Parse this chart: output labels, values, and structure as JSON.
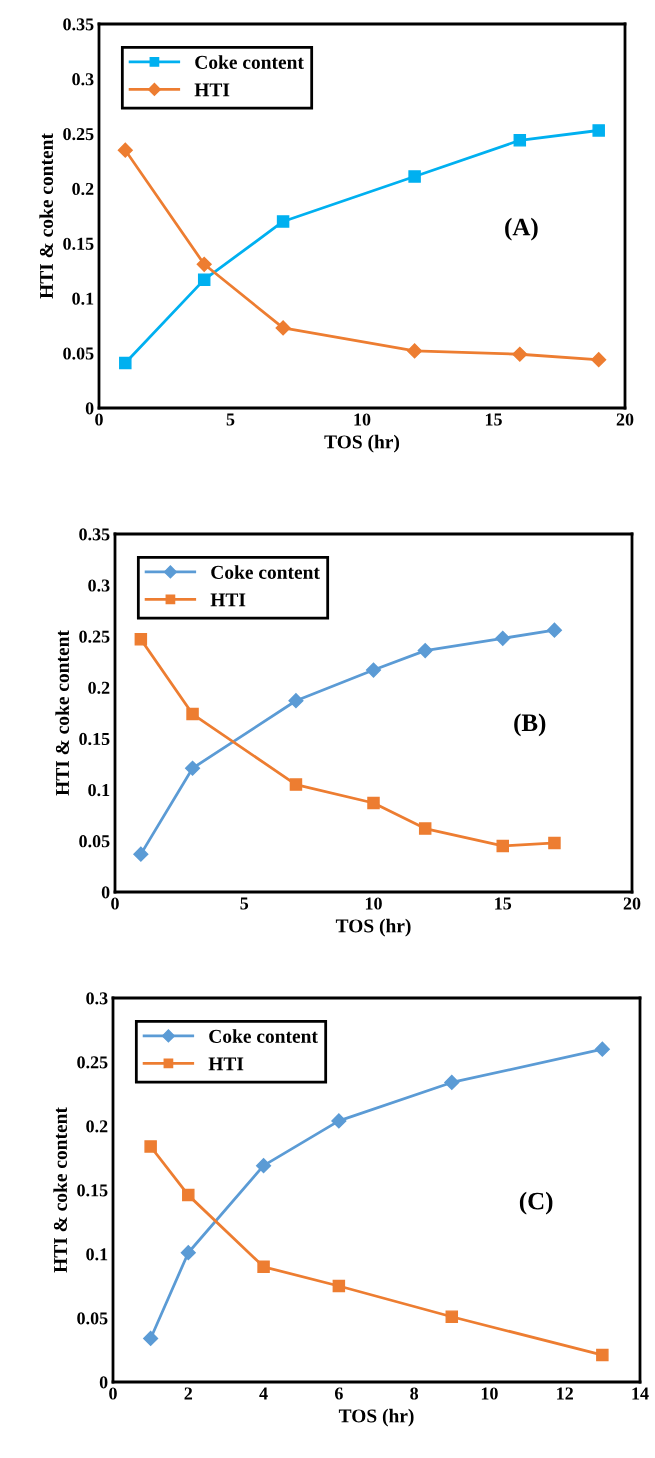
{
  "chart_data": [
    {
      "type": "line",
      "xlabel": "TOS (hr)",
      "ylabel": "HTI & coke content",
      "annotations": [
        "(A)"
      ],
      "xlim": [
        0,
        20
      ],
      "xticks": [
        0,
        5,
        10,
        15,
        20
      ],
      "ylim": [
        0,
        0.35
      ],
      "yticks": [
        0,
        0.05,
        0.1,
        0.15,
        0.2,
        0.25,
        0.3,
        0.35
      ],
      "grid": false,
      "legend": "top left",
      "x": [
        1,
        4,
        7,
        12,
        16,
        19
      ],
      "series": [
        {
          "name": "Coke content",
          "color": "#00b0f0",
          "marker": "square",
          "values": [
            0.041,
            0.117,
            0.17,
            0.211,
            0.244,
            0.253
          ]
        },
        {
          "name": "HTI",
          "color": "#ed7d31",
          "marker": "diamond",
          "values": [
            0.235,
            0.131,
            0.073,
            0.052,
            0.049,
            0.044
          ]
        }
      ]
    },
    {
      "type": "line",
      "xlabel": "TOS (hr)",
      "ylabel": "HTI & coke content",
      "annotations": [
        "(B)"
      ],
      "xlim": [
        0,
        20
      ],
      "xticks": [
        0,
        5,
        10,
        15,
        20
      ],
      "ylim": [
        0,
        0.35
      ],
      "yticks": [
        0,
        0.05,
        0.1,
        0.15,
        0.2,
        0.25,
        0.3,
        0.35
      ],
      "grid": false,
      "legend": "top left",
      "x": [
        1,
        3,
        7,
        10,
        12,
        15,
        17
      ],
      "series": [
        {
          "name": "Coke content",
          "color": "#5b9bd5",
          "marker": "diamond",
          "values": [
            0.037,
            0.121,
            0.187,
            0.217,
            0.236,
            0.248,
            0.256
          ]
        },
        {
          "name": "HTI",
          "color": "#ed7d31",
          "marker": "square",
          "values": [
            0.247,
            0.174,
            0.105,
            0.087,
            0.062,
            0.045,
            0.048
          ]
        }
      ]
    },
    {
      "type": "line",
      "xlabel": "TOS (hr)",
      "ylabel": "HTI & coke content",
      "annotations": [
        "(C)"
      ],
      "xlim": [
        0,
        14
      ],
      "xticks": [
        0,
        2,
        4,
        6,
        8,
        10,
        12,
        14
      ],
      "ylim": [
        0,
        0.3
      ],
      "yticks": [
        0,
        0.05,
        0.1,
        0.15,
        0.2,
        0.25,
        0.3
      ],
      "grid": false,
      "legend": "top left",
      "x": [
        1,
        2,
        4,
        6,
        9,
        13
      ],
      "series": [
        {
          "name": "Coke content",
          "color": "#5b9bd5",
          "marker": "diamond",
          "values": [
            0.034,
            0.101,
            0.169,
            0.204,
            0.234,
            0.26
          ]
        },
        {
          "name": "HTI",
          "color": "#ed7d31",
          "marker": "square",
          "values": [
            0.184,
            0.146,
            0.09,
            0.075,
            0.051,
            0.021
          ]
        }
      ]
    }
  ]
}
